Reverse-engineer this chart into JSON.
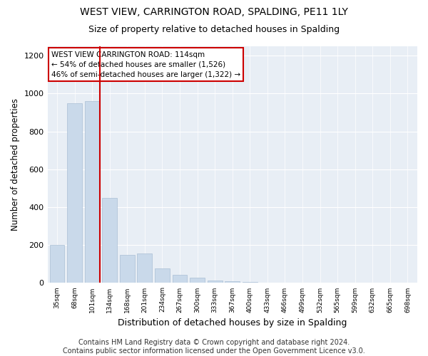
{
  "title": "WEST VIEW, CARRINGTON ROAD, SPALDING, PE11 1LY",
  "subtitle": "Size of property relative to detached houses in Spalding",
  "xlabel": "Distribution of detached houses by size in Spalding",
  "ylabel": "Number of detached properties",
  "bar_color": "#c9d9ea",
  "bar_edge_color": "#aabfd4",
  "vline_color": "#cc0000",
  "vline_x_index": 2,
  "annotation_text": "WEST VIEW CARRINGTON ROAD: 114sqm\n← 54% of detached houses are smaller (1,526)\n46% of semi-detached houses are larger (1,322) →",
  "annotation_box_color": "white",
  "annotation_box_edge_color": "#cc0000",
  "categories": [
    "35sqm",
    "68sqm",
    "101sqm",
    "134sqm",
    "168sqm",
    "201sqm",
    "234sqm",
    "267sqm",
    "300sqm",
    "333sqm",
    "367sqm",
    "400sqm",
    "433sqm",
    "466sqm",
    "499sqm",
    "532sqm",
    "565sqm",
    "599sqm",
    "632sqm",
    "665sqm",
    "698sqm"
  ],
  "values": [
    200,
    950,
    960,
    450,
    150,
    155,
    75,
    42,
    28,
    14,
    10,
    5,
    3,
    0,
    0,
    0,
    0,
    0,
    0,
    0,
    0
  ],
  "ylim": [
    0,
    1250
  ],
  "yticks": [
    0,
    200,
    400,
    600,
    800,
    1000,
    1200
  ],
  "background_color": "#e8eef5",
  "footer_text": "Contains HM Land Registry data © Crown copyright and database right 2024.\nContains public sector information licensed under the Open Government Licence v3.0.",
  "title_fontsize": 10,
  "subtitle_fontsize": 9,
  "xlabel_fontsize": 9,
  "ylabel_fontsize": 8.5,
  "footer_fontsize": 7
}
